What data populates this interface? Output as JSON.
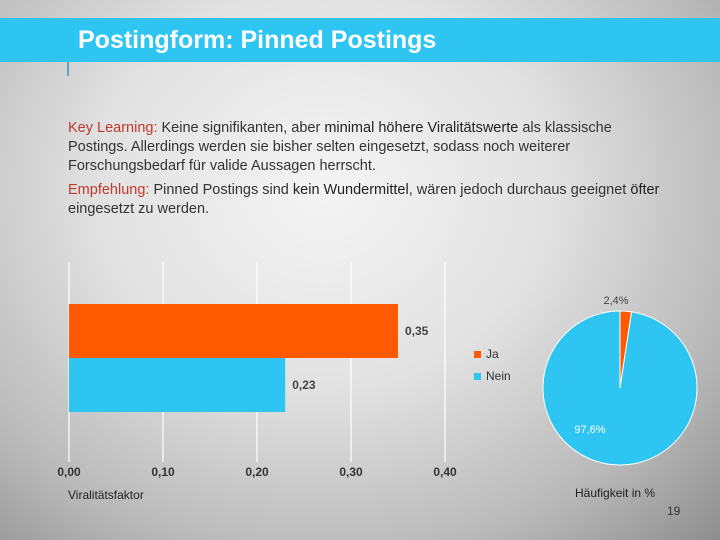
{
  "slide": {
    "title": "Postingform: Pinned Postings",
    "page_number": "19"
  },
  "text": {
    "p1": {
      "label": "Key Learning:",
      "seg1": " Keine signifikanten, aber ",
      "bold1": "minimal höhere Viralitätswerte",
      "seg2": " als klassische Postings. Allerdings werden sie bisher selten eingesetzt, sodass noch weiterer Forschungsbedarf für valide Aussagen herrscht."
    },
    "p2": {
      "label": "Empfehlung:",
      "seg1": " Pinned Postings sind ",
      "bold1": "kein Wundermittel",
      "seg2": ", wären jedoch durchaus geeignet ",
      "bold2": "öfter",
      "seg3": " eingesetzt zu werden."
    }
  },
  "colors": {
    "ja": "#ff5a00",
    "nein": "#2ec5f2",
    "title_bar": "#2ec5f2"
  },
  "chart_data": [
    {
      "type": "bar",
      "orientation": "horizontal",
      "categories": [
        "Ja",
        "Nein"
      ],
      "values": [
        0.35,
        0.23
      ],
      "value_labels": [
        "0,35",
        "0,23"
      ],
      "xlim": [
        0,
        0.4
      ],
      "xticks": [
        "0,00",
        "0,10",
        "0,20",
        "0,30",
        "0,40"
      ],
      "xlabel": "Viralitätsfaktor",
      "grid": true
    },
    {
      "type": "pie",
      "categories": [
        "Ja",
        "Nein"
      ],
      "values": [
        2.4,
        97.6
      ],
      "value_labels": [
        "2,4%",
        "97,6%"
      ],
      "legend": [
        "Ja",
        "Nein"
      ],
      "legend_position": "left",
      "caption": "Häufigkeit in %"
    }
  ]
}
